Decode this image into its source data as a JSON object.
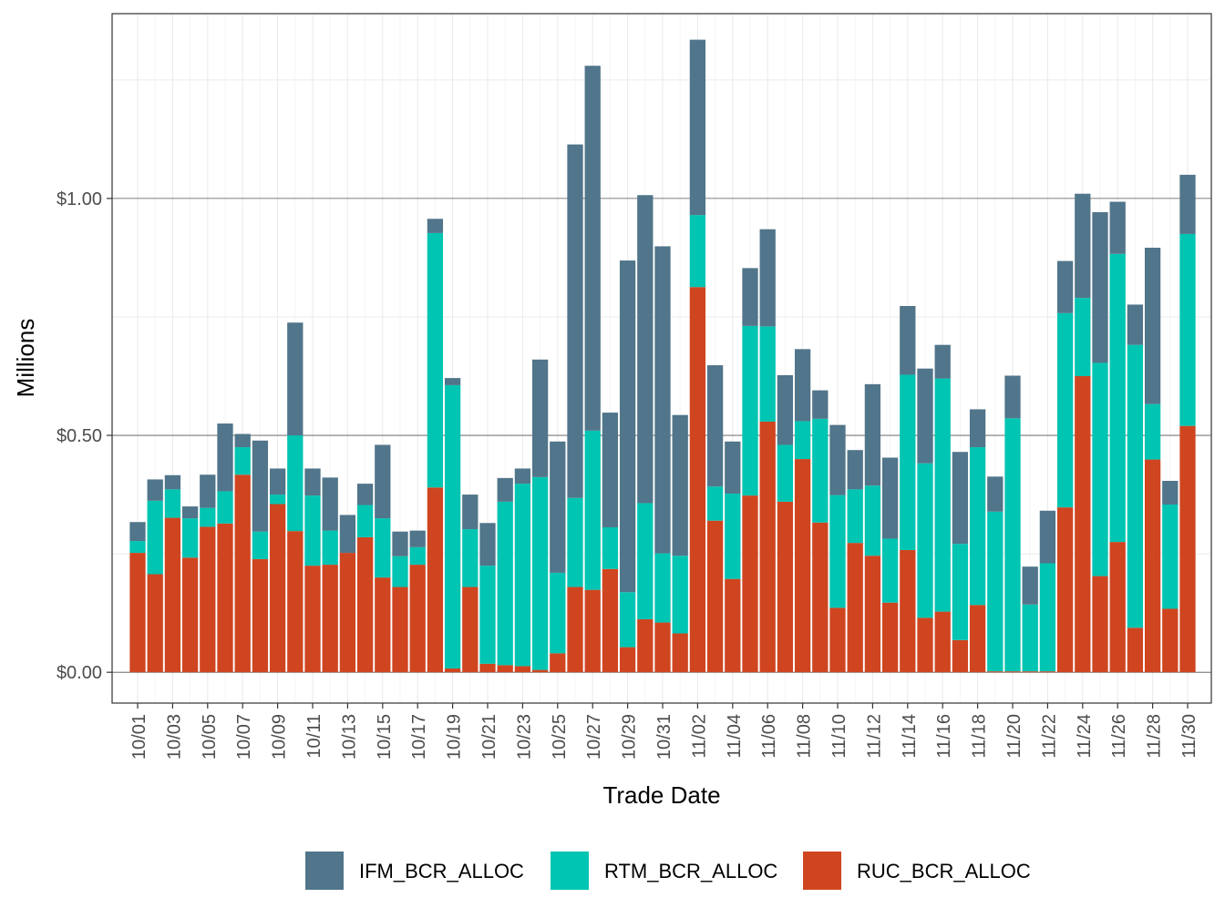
{
  "chart_data": {
    "type": "bar",
    "stacked": true,
    "title": "",
    "xlabel": "Trade Date",
    "ylabel": "Millions",
    "ylim": [
      -0.065,
      1.39
    ],
    "y_ticks": [
      0,
      0.5,
      1.0
    ],
    "y_tick_labels": [
      "$0.00",
      "$0.50",
      "$1.00"
    ],
    "grid": true,
    "legend_position": "bottom",
    "categories": [
      "10/01",
      "10/02",
      "10/03",
      "10/04",
      "10/05",
      "10/06",
      "10/07",
      "10/08",
      "10/09",
      "10/10",
      "10/11",
      "10/12",
      "10/13",
      "10/14",
      "10/15",
      "10/16",
      "10/17",
      "10/18",
      "10/19",
      "10/20",
      "10/21",
      "10/22",
      "10/23",
      "10/24",
      "10/25",
      "10/26",
      "10/27",
      "10/28",
      "10/29",
      "10/30",
      "10/31",
      "11/01",
      "11/02",
      "11/03",
      "11/04",
      "11/05",
      "11/06",
      "11/07",
      "11/08",
      "11/09",
      "11/10",
      "11/11",
      "11/12",
      "11/13",
      "11/14",
      "11/15",
      "11/16",
      "11/17",
      "11/18",
      "11/19",
      "11/20",
      "11/21",
      "11/22",
      "11/23",
      "11/24",
      "11/25",
      "11/26",
      "11/27",
      "11/28",
      "11/29",
      "11/30"
    ],
    "x_tick_labels": [
      "10/01",
      "10/03",
      "10/05",
      "10/07",
      "10/09",
      "10/11",
      "10/13",
      "10/15",
      "10/17",
      "10/19",
      "10/21",
      "10/23",
      "10/25",
      "10/27",
      "10/29",
      "10/31",
      "11/02",
      "11/04",
      "11/06",
      "11/08",
      "11/10",
      "11/12",
      "11/14",
      "11/16",
      "11/18",
      "11/20",
      "11/22",
      "11/24",
      "11/26",
      "11/28",
      "11/30"
    ],
    "series": [
      {
        "name": "RUC_BCR_ALLOC",
        "color": "#cf4520",
        "values": [
          0.252,
          0.207,
          0.326,
          0.242,
          0.307,
          0.314,
          0.417,
          0.239,
          0.355,
          0.298,
          0.225,
          0.227,
          0.252,
          0.285,
          0.2,
          0.18,
          0.227,
          0.39,
          0.008,
          0.18,
          0.018,
          0.015,
          0.013,
          0.005,
          0.04,
          0.18,
          0.174,
          0.218,
          0.053,
          0.112,
          0.105,
          0.082,
          0.813,
          0.32,
          0.197,
          0.373,
          0.529,
          0.36,
          0.45,
          0.316,
          0.136,
          0.273,
          0.246,
          0.147,
          0.258,
          0.115,
          0.128,
          0.068,
          0.142,
          0.002,
          0.002,
          0.002,
          0.002,
          0.348,
          0.625,
          0.203,
          0.275,
          0.094,
          0.449,
          0.134,
          0.52
        ]
      },
      {
        "name": "RTM_BCR_ALLOC",
        "color": "#00c5b2",
        "values": [
          0.025,
          0.155,
          0.06,
          0.083,
          0.04,
          0.068,
          0.058,
          0.058,
          0.02,
          0.202,
          0.148,
          0.072,
          0.0,
          0.068,
          0.125,
          0.065,
          0.037,
          0.537,
          0.598,
          0.122,
          0.207,
          0.345,
          0.385,
          0.407,
          0.17,
          0.188,
          0.336,
          0.088,
          0.116,
          0.245,
          0.146,
          0.164,
          0.152,
          0.072,
          0.18,
          0.358,
          0.201,
          0.12,
          0.08,
          0.219,
          0.238,
          0.113,
          0.148,
          0.135,
          0.37,
          0.326,
          0.492,
          0.203,
          0.333,
          0.337,
          0.534,
          0.141,
          0.228,
          0.41,
          0.165,
          0.45,
          0.608,
          0.597,
          0.117,
          0.22,
          0.405
        ]
      },
      {
        "name": "IFM_BCR_ALLOC",
        "color": "#51758a",
        "values": [
          0.04,
          0.045,
          0.03,
          0.025,
          0.07,
          0.143,
          0.028,
          0.192,
          0.055,
          0.238,
          0.057,
          0.112,
          0.08,
          0.045,
          0.155,
          0.052,
          0.035,
          0.03,
          0.015,
          0.073,
          0.09,
          0.05,
          0.032,
          0.248,
          0.277,
          0.746,
          0.77,
          0.242,
          0.7,
          0.65,
          0.648,
          0.297,
          0.37,
          0.256,
          0.11,
          0.122,
          0.205,
          0.147,
          0.152,
          0.06,
          0.148,
          0.083,
          0.214,
          0.171,
          0.145,
          0.2,
          0.071,
          0.194,
          0.08,
          0.074,
          0.09,
          0.08,
          0.111,
          0.11,
          0.22,
          0.318,
          0.11,
          0.085,
          0.33,
          0.05,
          0.125
        ]
      }
    ]
  }
}
